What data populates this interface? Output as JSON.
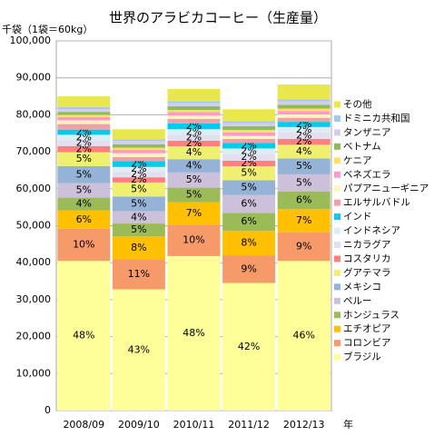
{
  "chart_data": {
    "type": "stacked_bar",
    "title": "世界のアラビカコーヒー（生産量）",
    "y_label": "千袋（1袋＝60kg）",
    "x_label": "年",
    "categories": [
      "2008/09",
      "2009/10",
      "2010/11",
      "2011/12",
      "2012/13"
    ],
    "ylim": [
      0,
      100000
    ],
    "yticks": [
      0,
      {
        "value": 10000,
        "label": "10,000"
      },
      {
        "value": 20000,
        "label": "20,000"
      },
      {
        "value": 30000,
        "label": "30,000"
      },
      {
        "value": 40000,
        "label": "40,000"
      },
      {
        "value": 50000,
        "label": "50,000"
      },
      {
        "value": 60000,
        "label": "60,000"
      },
      {
        "value": 70000,
        "label": "70,000"
      },
      {
        "value": 80000,
        "label": "80,000"
      },
      {
        "value": 90000,
        "label": "90,000"
      },
      {
        "value": 100000,
        "label": "100,000"
      }
    ],
    "grid": true,
    "legend": "right",
    "series": [
      {
        "name": "ブラジル",
        "color": "#ffff99",
        "values": [
          40500,
          32800,
          41800,
          34500,
          40500
        ],
        "share_labels": [
          "48%",
          "43%",
          "48%",
          "42%",
          "46%"
        ]
      },
      {
        "name": "コロンビア",
        "color": "#f79a6a",
        "values": [
          8700,
          8100,
          8500,
          7500,
          7700
        ],
        "share_labels": [
          "10%",
          "11%",
          "10%",
          "9%",
          "9%"
        ]
      },
      {
        "name": "エチオピア",
        "color": "#ffc000",
        "values": [
          4900,
          6200,
          6100,
          6600,
          6300
        ],
        "share_labels": [
          "6%",
          "8%",
          "7%",
          "8%",
          "7%"
        ]
      },
      {
        "name": "ホンジュラス",
        "color": "#9bbb59",
        "values": [
          3500,
          3500,
          3900,
          4900,
          4800
        ],
        "share_labels": [
          "4%",
          "5%",
          "5%",
          "6%",
          "6%"
        ]
      },
      {
        "name": "ペルー",
        "color": "#ccc0da",
        "values": [
          3900,
          3300,
          4100,
          4800,
          4600
        ],
        "share_labels": [
          "5%",
          "4%",
          "5%",
          "6%",
          "5%"
        ]
      },
      {
        "name": "メキシコ",
        "color": "#95b3d7",
        "values": [
          4600,
          4000,
          3600,
          4000,
          4300
        ],
        "share_labels": [
          "5%",
          "5%",
          "4%",
          "5%",
          "5%"
        ]
      },
      {
        "name": "グアテマラ",
        "color": "#f0f070",
        "values": [
          3800,
          3800,
          3500,
          3800,
          3700
        ],
        "share_labels": [
          "5%",
          "5%",
          "4%",
          "5%",
          "4%"
        ]
      },
      {
        "name": "コスタリカ",
        "color": "#ff8080",
        "values": [
          1600,
          1400,
          1500,
          1500,
          1600
        ],
        "share_labels": [
          "2%",
          "2%",
          "2%",
          "2%",
          "2%"
        ]
      },
      {
        "name": "ニカラグア",
        "color": "#e4dff0",
        "values": [
          1600,
          1600,
          1600,
          1800,
          1700
        ],
        "share_labels": [
          "2%",
          "2%",
          "2%",
          "2%",
          "2%"
        ]
      },
      {
        "name": "インドネシア",
        "color": "#dbeef4",
        "values": [
          1500,
          1200,
          1500,
          1500,
          1500
        ],
        "share_labels": [
          "2%",
          "2%",
          "2%",
          "2%",
          "2%"
        ]
      },
      {
        "name": "インド",
        "color": "#00ccee",
        "values": [
          1400,
          1600,
          1600,
          1500,
          1400
        ],
        "share_labels": [
          "2%",
          "2%",
          "2%",
          "2%",
          "2%"
        ]
      },
      {
        "name": "エルサルバドル",
        "color": "#f2a0a8",
        "values": [
          1500,
          1100,
          1200,
          1100,
          1100
        ]
      },
      {
        "name": "パプアニューギニア",
        "color": "#fdf5c0",
        "values": [
          1000,
          1000,
          900,
          800,
          900
        ]
      },
      {
        "name": "ベネズエラ",
        "color": "#ff99cc",
        "values": [
          900,
          900,
          900,
          900,
          900
        ]
      },
      {
        "name": "ケニア",
        "color": "#ffe066",
        "values": [
          600,
          600,
          600,
          700,
          700
        ]
      },
      {
        "name": "ベトナム",
        "color": "#8fbc5a",
        "values": [
          800,
          900,
          1000,
          1000,
          1000
        ]
      },
      {
        "name": "タンザニア",
        "color": "#d4cfe8",
        "values": [
          700,
          900,
          800,
          800,
          900
        ]
      },
      {
        "name": "ドミニカ共和国",
        "color": "#a6c8ec",
        "values": [
          600,
          500,
          600,
          600,
          600
        ]
      },
      {
        "name": "その他",
        "color": "#e8e84e",
        "values": [
          2900,
          2700,
          3300,
          3200,
          4000
        ]
      }
    ]
  }
}
